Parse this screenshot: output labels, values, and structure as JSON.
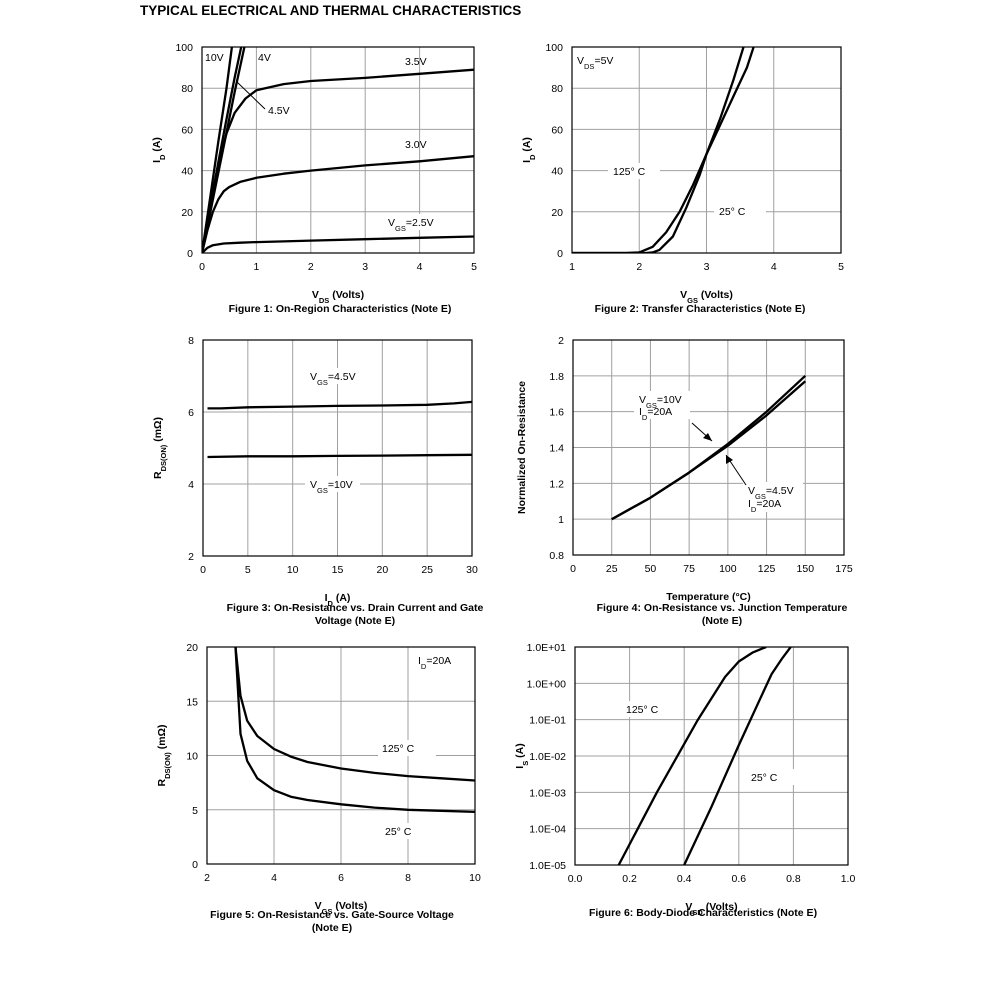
{
  "page_title": "TYPICAL ELECTRICAL AND THERMAL CHARACTERISTICS",
  "chart_data": [
    {
      "type": "line",
      "caption": "Figure 1: On-Region Characteristics (Note E)",
      "xlabel": "V_DS (Volts)",
      "ylabel": "I_D (A)",
      "xlim": [
        0,
        5
      ],
      "ylim": [
        0,
        100
      ],
      "xticks": [
        "0",
        "1",
        "2",
        "3",
        "4",
        "5"
      ],
      "yticks": [
        "0",
        "20",
        "40",
        "60",
        "80",
        "100"
      ],
      "grid": true,
      "series": [
        {
          "name": "10V",
          "x": [
            0,
            0.15,
            0.3,
            0.45,
            0.55
          ],
          "y": [
            0,
            27,
            54,
            80,
            100
          ]
        },
        {
          "name": "4V",
          "x": [
            0,
            0.15,
            0.3,
            0.45,
            0.6,
            0.72
          ],
          "y": [
            0,
            22,
            44,
            65,
            85,
            100
          ]
        },
        {
          "name": "4.5V",
          "x": [
            0,
            0.2,
            0.4,
            0.6,
            0.78
          ],
          "y": [
            0,
            26,
            52,
            78,
            100
          ]
        },
        {
          "name": "3.5V",
          "x": [
            0,
            0.1,
            0.2,
            0.3,
            0.45,
            0.6,
            0.8,
            1,
            1.5,
            2,
            3,
            4,
            5
          ],
          "y": [
            0,
            15,
            30,
            43,
            58,
            68,
            75,
            79,
            82,
            83.5,
            85,
            87,
            89
          ]
        },
        {
          "name": "3.0V",
          "x": [
            0,
            0.1,
            0.2,
            0.3,
            0.4,
            0.5,
            0.7,
            1,
            1.5,
            2,
            3,
            4,
            5
          ],
          "y": [
            0,
            11,
            20,
            26,
            30,
            32,
            34.5,
            36.5,
            38.5,
            40,
            42.5,
            44.5,
            47
          ]
        },
        {
          "name": "V_GS=2.5V",
          "x": [
            0,
            0.1,
            0.2,
            0.4,
            0.7,
            1,
            2,
            3,
            4,
            5
          ],
          "y": [
            0,
            2.5,
            3.8,
            4.6,
            5,
            5.3,
            6,
            6.7,
            7.4,
            8
          ]
        }
      ],
      "annotations": [
        "10V",
        "4V",
        "4.5V",
        "3.5V",
        "3.0V",
        "V_GS=2.5V"
      ]
    },
    {
      "type": "line",
      "caption": "Figure 2: Transfer Characteristics (Note E)",
      "xlabel": "V_GS (Volts)",
      "ylabel": "I_D (A)",
      "xlim": [
        1,
        5
      ],
      "ylim": [
        0,
        100
      ],
      "xticks": [
        "1",
        "2",
        "3",
        "4",
        "5"
      ],
      "yticks": [
        "0",
        "20",
        "40",
        "60",
        "80",
        "100"
      ],
      "grid": true,
      "series": [
        {
          "name": "125° C",
          "x": [
            1,
            1.8,
            2,
            2.2,
            2.4,
            2.6,
            2.8,
            3,
            3.2,
            3.4,
            3.55
          ],
          "y": [
            0,
            0,
            0.3,
            3,
            10,
            20,
            33,
            48,
            65,
            84,
            100
          ]
        },
        {
          "name": "25° C",
          "x": [
            1,
            2.1,
            2.2,
            2.3,
            2.5,
            2.7,
            2.9,
            3,
            3.2,
            3.4,
            3.6,
            3.7
          ],
          "y": [
            0,
            0,
            0.3,
            1.5,
            8,
            22,
            38,
            48,
            62,
            76,
            90,
            100
          ]
        }
      ],
      "annotations": [
        "V_DS=5V",
        "125° C",
        "25° C"
      ]
    },
    {
      "type": "line",
      "caption": "Figure 3: On-Resistance vs. Drain Current and Gate Voltage (Note E)",
      "xlabel": "I_D (A)",
      "ylabel": "R_DS(ON) (mΩ)",
      "xlim": [
        0,
        30
      ],
      "ylim": [
        2,
        8
      ],
      "xticks": [
        "0",
        "5",
        "10",
        "15",
        "20",
        "25",
        "30"
      ],
      "yticks": [
        "2",
        "4",
        "6",
        "8"
      ],
      "grid": true,
      "series": [
        {
          "name": "V_GS=4.5V",
          "x": [
            0.5,
            2,
            5,
            10,
            15,
            20,
            25,
            28,
            30
          ],
          "y": [
            6.1,
            6.1,
            6.13,
            6.15,
            6.17,
            6.18,
            6.2,
            6.24,
            6.28
          ]
        },
        {
          "name": "V_GS=10V",
          "x": [
            0.5,
            5,
            10,
            15,
            20,
            25,
            30
          ],
          "y": [
            4.75,
            4.77,
            4.77,
            4.78,
            4.79,
            4.8,
            4.81
          ]
        }
      ],
      "annotations": [
        "V_GS=4.5V",
        "V_GS=10V"
      ]
    },
    {
      "type": "line",
      "caption": "Figure 4: On-Resistance vs. Junction Temperature (Note E)",
      "xlabel": "Temperature (°C)",
      "ylabel": "Normalized On-Resistance",
      "xlim": [
        0,
        175
      ],
      "ylim": [
        0.8,
        2
      ],
      "xticks": [
        "0",
        "25",
        "50",
        "75",
        "100",
        "125",
        "150",
        "175"
      ],
      "yticks": [
        "0.8",
        "1",
        "1.2",
        "1.4",
        "1.6",
        "1.8",
        "2"
      ],
      "grid": true,
      "series": [
        {
          "name": "V_GS=10V, I_D=20A",
          "x": [
            25,
            50,
            75,
            100,
            125,
            150
          ],
          "y": [
            1.0,
            1.12,
            1.26,
            1.42,
            1.6,
            1.8
          ]
        },
        {
          "name": "V_GS=4.5V, I_D=20A",
          "x": [
            25,
            50,
            75,
            100,
            125,
            150
          ],
          "y": [
            1.0,
            1.12,
            1.26,
            1.41,
            1.58,
            1.77
          ]
        }
      ],
      "annotations": [
        "V_GS=10V",
        "I_D=20A",
        "V_GS=4.5V",
        "I_D=20A"
      ]
    },
    {
      "type": "line",
      "caption": "Figure 5: On-Resistance vs. Gate-Source Voltage (Note E)",
      "xlabel": "V_GS (Volts)",
      "ylabel": "R_DS(ON) (mΩ)",
      "xlim": [
        2,
        10
      ],
      "ylim": [
        0,
        20
      ],
      "xticks": [
        "2",
        "4",
        "6",
        "8",
        "10"
      ],
      "yticks": [
        "0",
        "5",
        "10",
        "15",
        "20"
      ],
      "grid": true,
      "series": [
        {
          "name": "125° C",
          "x": [
            2.85,
            3,
            3.2,
            3.5,
            4,
            4.5,
            5,
            6,
            7,
            8,
            9,
            10
          ],
          "y": [
            20,
            15.5,
            13.2,
            11.8,
            10.6,
            9.9,
            9.4,
            8.8,
            8.4,
            8.1,
            7.9,
            7.7
          ]
        },
        {
          "name": "25° C",
          "x": [
            2.85,
            3,
            3.2,
            3.5,
            4,
            4.5,
            5,
            6,
            7,
            8,
            9,
            10
          ],
          "y": [
            20,
            12,
            9.5,
            7.9,
            6.8,
            6.2,
            5.9,
            5.5,
            5.2,
            5.0,
            4.9,
            4.8
          ]
        }
      ],
      "annotations": [
        "I_D=20A",
        "125° C",
        "25° C"
      ]
    },
    {
      "type": "line",
      "caption": "Figure 6: Body-Diode Characteristics (Note E)",
      "xlabel": "V_SD (Volts)",
      "ylabel": "I_S (A)",
      "xlim": [
        0,
        1
      ],
      "ylim": [
        1e-05,
        10
      ],
      "yscale": "log",
      "xticks": [
        "0.0",
        "0.2",
        "0.4",
        "0.6",
        "0.8",
        "1.0"
      ],
      "yticks": [
        "1.0E-05",
        "1.0E-04",
        "1.0E-03",
        "1.0E-02",
        "1.0E-01",
        "1.0E+00",
        "1.0E+01"
      ],
      "grid": true,
      "series": [
        {
          "name": "125° C",
          "x": [
            0.16,
            0.3,
            0.45,
            0.55,
            0.6,
            0.65,
            0.7
          ],
          "y": [
            1e-05,
            0.001,
            0.1,
            1.5,
            4,
            7,
            10
          ]
        },
        {
          "name": "25° C",
          "x": [
            0.4,
            0.5,
            0.6,
            0.68,
            0.72,
            0.76,
            0.79
          ],
          "y": [
            1e-05,
            0.0004,
            0.02,
            0.4,
            1.8,
            5,
            10
          ]
        }
      ],
      "annotations": [
        "125° C",
        "25° C"
      ]
    }
  ]
}
